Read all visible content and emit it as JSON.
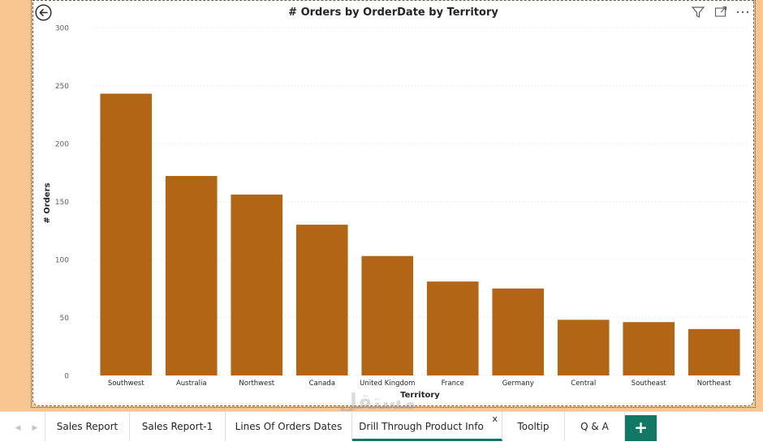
{
  "chart_data": {
    "type": "bar",
    "title": "# Orders by OrderDate by Territory",
    "xlabel": "Territory",
    "ylabel": "# Orders",
    "ylim": [
      0,
      300
    ],
    "yticks": [
      0,
      50,
      100,
      150,
      200,
      250,
      300
    ],
    "grid": true,
    "color": "#b36516",
    "categories": [
      "Southwest",
      "Australia",
      "Northwest",
      "Canada",
      "United Kingdom",
      "France",
      "Germany",
      "Central",
      "Southeast",
      "Northeast"
    ],
    "values": [
      243,
      172,
      156,
      130,
      103,
      81,
      75,
      48,
      46,
      40
    ]
  },
  "tabs": [
    {
      "label": "Sales Report",
      "active": false
    },
    {
      "label": "Sales Report-1",
      "active": false
    },
    {
      "label": "Lines Of Orders Dates",
      "active": false
    },
    {
      "label": "Drill Through Product Info",
      "active": true,
      "close": "x"
    },
    {
      "label": "Tooltip",
      "active": false
    },
    {
      "label": "Q & A",
      "active": false
    }
  ],
  "add_tab_label": "+",
  "icons": {
    "back": "back-arrow-icon",
    "filter": "filter-icon",
    "focus": "focus-mode-icon",
    "more": "more-options-icon"
  },
  "colors": {
    "canvas": "#f9c590",
    "bar": "#b36516",
    "accent": "#117865"
  }
}
